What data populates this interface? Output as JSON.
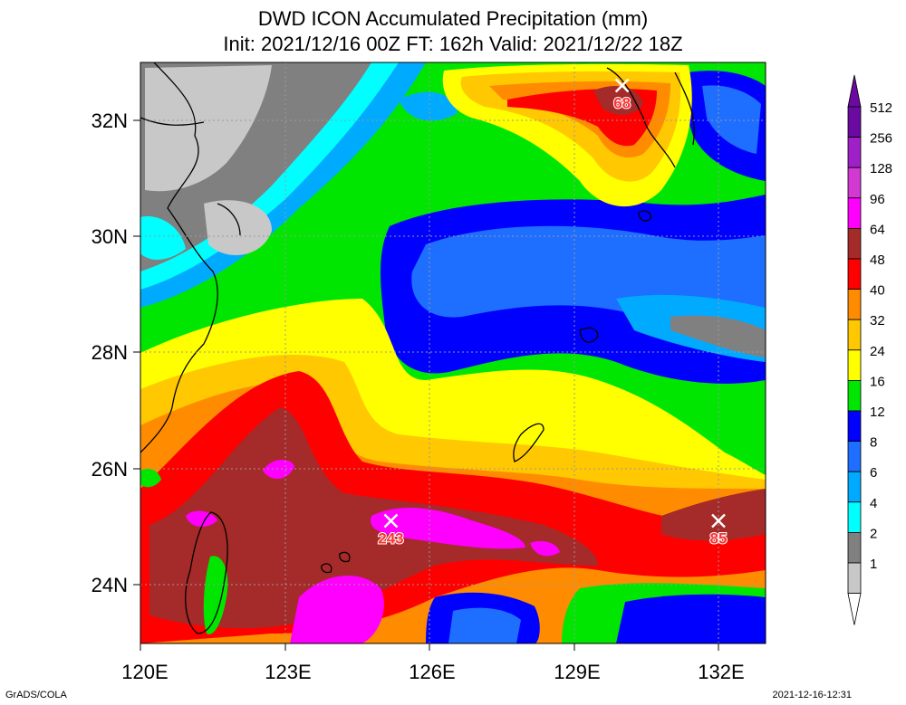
{
  "title": {
    "line1": "DWD ICON Accumulated Precipitation (mm)",
    "line2": "Init: 2021/12/16 00Z  FT: 162h  Valid: 2021/12/22 18Z"
  },
  "axes": {
    "x_labels": [
      "120E",
      "123E",
      "126E",
      "129E",
      "132E"
    ],
    "y_labels": [
      "32N",
      "30N",
      "28N",
      "26N",
      "24N"
    ]
  },
  "legend": {
    "levels": [
      {
        "label": "512",
        "color": "#6a0aa0"
      },
      {
        "label": "256",
        "color": "#a020c8"
      },
      {
        "label": "128",
        "color": "#d238d2"
      },
      {
        "label": "96",
        "color": "#ff00ff"
      },
      {
        "label": "64",
        "color": "#a52a2a"
      },
      {
        "label": "48",
        "color": "#ff0000"
      },
      {
        "label": "40",
        "color": "#ff8c00"
      },
      {
        "label": "32",
        "color": "#ffc800"
      },
      {
        "label": "24",
        "color": "#ffff00"
      },
      {
        "label": "16",
        "color": "#00e600"
      },
      {
        "label": "12",
        "color": "#0000ff"
      },
      {
        "label": "8",
        "color": "#1e6eff"
      },
      {
        "label": "6",
        "color": "#00aaff"
      },
      {
        "label": "4",
        "color": "#00ffff"
      },
      {
        "label": "2",
        "color": "#808080"
      },
      {
        "label": "1",
        "color": "#c8c8c8"
      }
    ],
    "bottom_color": "#ffffff"
  },
  "maxima": [
    {
      "label": "68",
      "lon": 130.0,
      "lat": 32.6
    },
    {
      "label": "243",
      "lon": 125.2,
      "lat": 25.1
    },
    {
      "label": "85",
      "lon": 132.0,
      "lat": 25.1
    }
  ],
  "footer": {
    "left": "GrADS/COLA",
    "right": "2021-12-16-12:31"
  }
}
